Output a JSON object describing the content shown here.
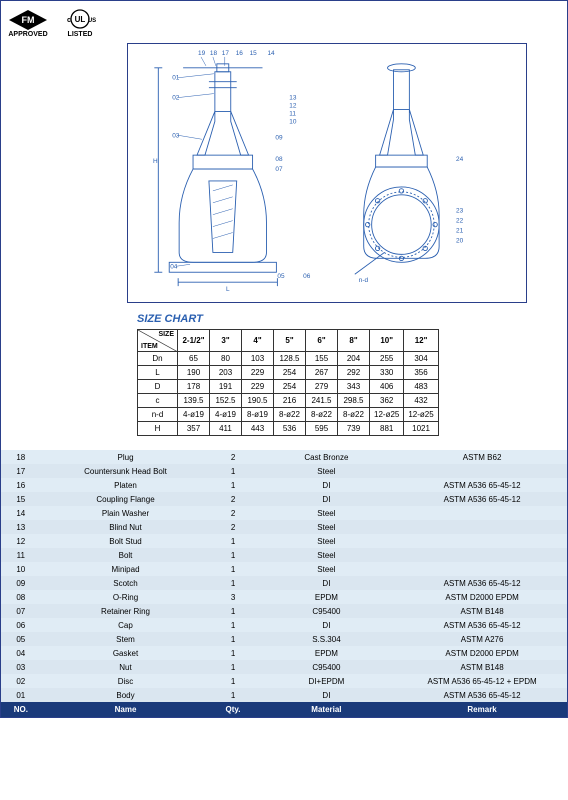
{
  "certs": {
    "fm": "APPROVED",
    "ul": "LISTED",
    "ul_c": "c",
    "ul_us": "US"
  },
  "diagram": {
    "stroke": "#2a5fb0",
    "callouts_left": [
      "19",
      "18",
      "17",
      "16",
      "15",
      "14",
      "01",
      "02",
      "03",
      "04"
    ],
    "callouts_right": [
      "13",
      "12",
      "11",
      "10",
      "09",
      "08",
      "07",
      "24",
      "23",
      "22",
      "21",
      "20",
      "06",
      "05"
    ],
    "dims": [
      "H",
      "L",
      "n-d"
    ]
  },
  "size_chart": {
    "title": "SIZE CHART",
    "diag": {
      "size": "SIZE",
      "item": "ITEM"
    },
    "cols": [
      "2-1/2\"",
      "3\"",
      "4\"",
      "5\"",
      "6\"",
      "8\"",
      "10\"",
      "12\""
    ],
    "rows": [
      {
        "label": "Dn",
        "v": [
          "65",
          "80",
          "103",
          "128.5",
          "155",
          "204",
          "255",
          "304"
        ]
      },
      {
        "label": "L",
        "v": [
          "190",
          "203",
          "229",
          "254",
          "267",
          "292",
          "330",
          "356"
        ]
      },
      {
        "label": "D",
        "v": [
          "178",
          "191",
          "229",
          "254",
          "279",
          "343",
          "406",
          "483"
        ]
      },
      {
        "label": "c",
        "v": [
          "139.5",
          "152.5",
          "190.5",
          "216",
          "241.5",
          "298.5",
          "362",
          "432"
        ]
      },
      {
        "label": "n-d",
        "v": [
          "4-ø19",
          "4-ø19",
          "8-ø19",
          "8-ø22",
          "8-ø22",
          "8-ø22",
          "12-ø25",
          "12-ø25"
        ]
      },
      {
        "label": "H",
        "v": [
          "357",
          "411",
          "443",
          "536",
          "595",
          "739",
          "881",
          "1021"
        ]
      }
    ]
  },
  "parts": {
    "header": {
      "no": "NO.",
      "name": "Name",
      "qty": "Qty.",
      "material": "Material",
      "remark": "Remark"
    },
    "rows": [
      {
        "no": "18",
        "name": "Plug",
        "qty": "2",
        "material": "Cast Bronze",
        "remark": "ASTM B62"
      },
      {
        "no": "17",
        "name": "Countersunk Head Bolt",
        "qty": "1",
        "material": "Steel",
        "remark": ""
      },
      {
        "no": "16",
        "name": "Platen",
        "qty": "1",
        "material": "DI",
        "remark": "ASTM A536 65-45-12"
      },
      {
        "no": "15",
        "name": "Coupling Flange",
        "qty": "2",
        "material": "DI",
        "remark": "ASTM A536 65-45-12"
      },
      {
        "no": "14",
        "name": "Plain Washer",
        "qty": "2",
        "material": "Steel",
        "remark": ""
      },
      {
        "no": "13",
        "name": "Blind Nut",
        "qty": "2",
        "material": "Steel",
        "remark": ""
      },
      {
        "no": "12",
        "name": "Bolt Stud",
        "qty": "1",
        "material": "Steel",
        "remark": ""
      },
      {
        "no": "11",
        "name": "Bolt",
        "qty": "1",
        "material": "Steel",
        "remark": ""
      },
      {
        "no": "10",
        "name": "Minipad",
        "qty": "1",
        "material": "Steel",
        "remark": ""
      },
      {
        "no": "09",
        "name": "Scotch",
        "qty": "1",
        "material": "DI",
        "remark": "ASTM A536 65-45-12"
      },
      {
        "no": "08",
        "name": "O-Ring",
        "qty": "3",
        "material": "EPDM",
        "remark": "ASTM D2000 EPDM"
      },
      {
        "no": "07",
        "name": "Retainer Ring",
        "qty": "1",
        "material": "C95400",
        "remark": "ASTM B148"
      },
      {
        "no": "06",
        "name": "Cap",
        "qty": "1",
        "material": "DI",
        "remark": "ASTM A536 65-45-12"
      },
      {
        "no": "05",
        "name": "Stem",
        "qty": "1",
        "material": "S.S.304",
        "remark": "ASTM A276"
      },
      {
        "no": "04",
        "name": "Gasket",
        "qty": "1",
        "material": "EPDM",
        "remark": "ASTM D2000 EPDM"
      },
      {
        "no": "03",
        "name": "Nut",
        "qty": "1",
        "material": "C95400",
        "remark": "ASTM B148"
      },
      {
        "no": "02",
        "name": "Disc",
        "qty": "1",
        "material": "DI+EPDM",
        "remark": "ASTM A536 65-45-12 + EPDM"
      },
      {
        "no": "01",
        "name": "Body",
        "qty": "1",
        "material": "DI",
        "remark": "ASTM A536 65-45-12"
      }
    ]
  },
  "colors": {
    "row_alt0": "#e0ecf5",
    "row_alt1": "#dae6f0",
    "header_bg": "#1a3a7a",
    "header_fg": "#ffffff",
    "accent": "#2a5fb0"
  }
}
